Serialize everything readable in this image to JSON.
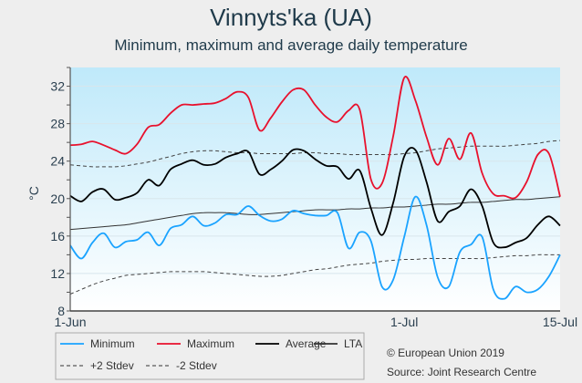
{
  "chart_data": {
    "type": "line",
    "title": "Vinnyts'ka (UA)",
    "subtitle": "Minimum, maximum and average daily temperature",
    "ylabel": "°C",
    "xlabel": "",
    "ylim": [
      8,
      34
    ],
    "yticks": [
      "8",
      "12",
      "16",
      "20",
      "24",
      "28",
      "32"
    ],
    "xticks": [
      {
        "label": "1-Jun",
        "day": 0
      },
      {
        "label": "1-Jul",
        "day": 30
      },
      {
        "label": "15-Jul",
        "day": 44
      }
    ],
    "x_start": "1-Jun",
    "x_end": "15-Jul",
    "grid": true,
    "legend_position": "bottom",
    "series": [
      {
        "name": "Minimum",
        "color": "#1aa3ff",
        "dash": false,
        "values": [
          15.0,
          13.6,
          15.3,
          16.3,
          14.8,
          15.4,
          15.6,
          16.4,
          15.0,
          16.8,
          17.2,
          18.1,
          17.1,
          17.4,
          18.3,
          18.3,
          19.2,
          18.2,
          17.6,
          17.8,
          18.7,
          18.4,
          18.2,
          18.2,
          18.5,
          14.7,
          16.4,
          15.5,
          10.6,
          11.3,
          15.9,
          20.2,
          17.2,
          11.6,
          10.6,
          14.3,
          15.1,
          15.9,
          10.3,
          9.3,
          10.6,
          10.0,
          10.3,
          11.7,
          14.0
        ]
      },
      {
        "name": "Maximum",
        "color": "#e8112d",
        "dash": false,
        "values": [
          25.7,
          25.8,
          26.1,
          25.7,
          25.2,
          24.8,
          25.8,
          27.6,
          27.9,
          29.1,
          30.0,
          30.0,
          30.1,
          30.2,
          30.7,
          31.4,
          30.8,
          27.3,
          28.6,
          30.3,
          31.6,
          31.6,
          30.0,
          28.7,
          28.2,
          29.4,
          29.5,
          22.1,
          21.6,
          26.6,
          32.9,
          30.5,
          26.6,
          23.6,
          26.4,
          24.2,
          27.0,
          22.7,
          20.5,
          20.3,
          20.1,
          21.8,
          24.7,
          24.8,
          20.2
        ]
      },
      {
        "name": "Average",
        "color": "#000000",
        "dash": false,
        "values": [
          20.3,
          19.7,
          20.7,
          21.0,
          19.9,
          20.1,
          20.6,
          22.0,
          21.4,
          23.1,
          23.7,
          24.1,
          23.6,
          23.7,
          24.4,
          24.8,
          25.0,
          22.6,
          23.1,
          24.0,
          25.2,
          25.1,
          24.2,
          23.5,
          23.4,
          22.1,
          23.0,
          19.0,
          16.1,
          19.5,
          24.5,
          25.2,
          21.8,
          17.6,
          18.6,
          19.2,
          21.0,
          19.2,
          15.3,
          14.8,
          15.3,
          15.8,
          17.2,
          18.1,
          17.1
        ]
      },
      {
        "name": "LTA",
        "color": "#333333",
        "dash": false,
        "values": [
          16.7,
          16.8,
          16.9,
          17.0,
          17.1,
          17.2,
          17.4,
          17.6,
          17.8,
          18.0,
          18.2,
          18.4,
          18.5,
          18.5,
          18.5,
          18.4,
          18.3,
          18.3,
          18.4,
          18.5,
          18.6,
          18.7,
          18.8,
          18.8,
          18.8,
          18.9,
          18.9,
          19.0,
          19.0,
          19.1,
          19.1,
          19.2,
          19.3,
          19.4,
          19.4,
          19.5,
          19.6,
          19.6,
          19.7,
          19.8,
          19.9,
          19.9,
          20.0,
          20.1,
          20.2
        ]
      },
      {
        "name": "+2 Stdev",
        "color": "#444444",
        "dash": true,
        "values": [
          23.6,
          23.5,
          23.4,
          23.4,
          23.4,
          23.5,
          23.7,
          23.9,
          24.2,
          24.5,
          24.8,
          25.0,
          25.1,
          25.1,
          25.0,
          24.9,
          24.9,
          24.8,
          24.8,
          24.8,
          24.8,
          24.9,
          24.9,
          24.8,
          24.8,
          24.7,
          24.7,
          24.7,
          24.7,
          24.7,
          24.8,
          24.9,
          25.1,
          25.3,
          25.4,
          25.5,
          25.6,
          25.6,
          25.6,
          25.6,
          25.7,
          25.8,
          25.9,
          26.1,
          26.2
        ]
      },
      {
        "name": "-2 Stdev",
        "color": "#444444",
        "dash": true,
        "values": [
          9.8,
          10.3,
          10.8,
          11.2,
          11.5,
          11.8,
          11.9,
          12.0,
          12.1,
          12.2,
          12.2,
          12.2,
          12.2,
          12.1,
          12.0,
          11.9,
          11.8,
          11.7,
          11.7,
          11.8,
          12.0,
          12.2,
          12.4,
          12.5,
          12.7,
          12.9,
          13.0,
          13.1,
          13.3,
          13.4,
          13.5,
          13.5,
          13.6,
          13.6,
          13.6,
          13.6,
          13.6,
          13.6,
          13.7,
          13.8,
          13.9,
          13.9,
          14.0,
          14.0,
          14.0
        ]
      }
    ]
  },
  "footer": {
    "copyright": "© European Union 2019",
    "source": "Source: Joint Research Centre"
  }
}
